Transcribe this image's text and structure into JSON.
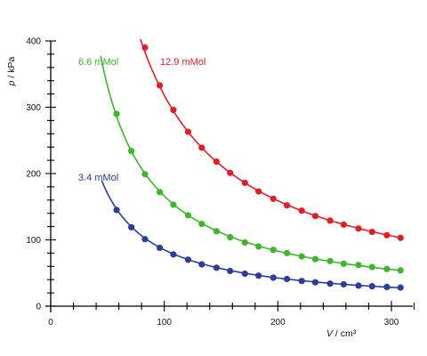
{
  "chart_data": {
    "type": "scatter",
    "title": "",
    "xlabel_var": "V",
    "xlabel_unit": " / cm³",
    "ylabel_var": "p",
    "ylabel_unit": " / kPa",
    "xlim": [
      0,
      320
    ],
    "ylim": [
      0,
      400
    ],
    "x_ticks": [
      "0",
      "100",
      "200",
      "300"
    ],
    "y_ticks": [
      "0",
      "100",
      "200",
      "300",
      "400"
    ],
    "grid": false,
    "legend": "inline labels",
    "series": [
      {
        "name": "3.4 mMol",
        "color": "#2a3e9a",
        "fit_constant": 8500,
        "fit_xrange": [
          45,
          310
        ],
        "x": [
          58,
          71,
          83,
          96,
          108,
          121,
          133,
          146,
          158,
          171,
          183,
          196,
          208,
          221,
          233,
          246,
          258,
          271,
          283,
          296,
          308
        ],
        "y": [
          145,
          119,
          101,
          88,
          78,
          70,
          63,
          58,
          53,
          49,
          46,
          43,
          41,
          38,
          36,
          34,
          33,
          31,
          30,
          29,
          28
        ]
      },
      {
        "name": "6.6 mMol",
        "color": "#3fb52d",
        "fit_constant": 16600,
        "fit_xrange": [
          44,
          310
        ],
        "x": [
          58,
          71,
          83,
          96,
          108,
          121,
          133,
          146,
          158,
          171,
          183,
          196,
          208,
          221,
          233,
          246,
          258,
          271,
          283,
          296,
          308
        ],
        "y": [
          290,
          234,
          199,
          172,
          153,
          137,
          124,
          113,
          104,
          96,
          90,
          85,
          80,
          75,
          71,
          68,
          64,
          62,
          59,
          56,
          54
        ]
      },
      {
        "name": "12.9 mMol",
        "color": "#dd1f26",
        "fit_constant": 31800,
        "fit_xrange": [
          79,
          310
        ],
        "x": [
          83,
          96,
          108,
          121,
          133,
          146,
          158,
          171,
          183,
          196,
          208,
          221,
          233,
          246,
          258,
          271,
          283,
          296,
          308
        ],
        "y": [
          390,
          333,
          296,
          263,
          239,
          218,
          201,
          186,
          173,
          162,
          152,
          144,
          136,
          129,
          123,
          117,
          112,
          107,
          103
        ]
      }
    ]
  }
}
